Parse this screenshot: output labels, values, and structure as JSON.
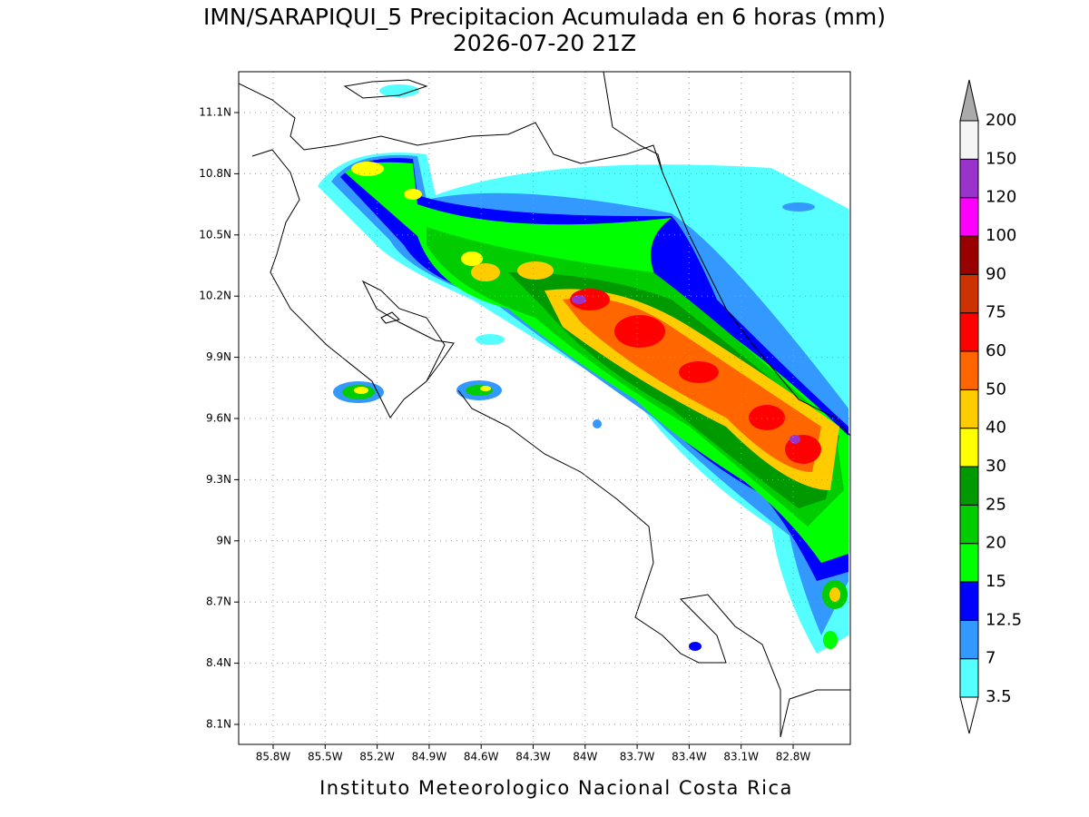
{
  "header": {
    "title": "IMN/SARAPIQUI_5 Precipitacion Acumulada en 6 horas (mm)",
    "subtitle": "2026-07-20 21Z"
  },
  "map": {
    "lon_labels": [
      "85.8W",
      "85.5W",
      "85.2W",
      "84.9W",
      "84.6W",
      "84.3W",
      "84W",
      "83.7W",
      "83.4W",
      "83.1W",
      "82.8W"
    ],
    "lat_labels": [
      "11.1N",
      "10.8N",
      "10.5N",
      "10.2N",
      "9.9N",
      "9.6N",
      "9.3N",
      "9N",
      "8.7N",
      "8.4N",
      "8.1N"
    ]
  },
  "colorbar": {
    "levels": [
      3.5,
      7,
      12.5,
      15,
      20,
      25,
      30,
      40,
      50,
      60,
      75,
      90,
      100,
      120,
      150,
      200
    ],
    "colors": [
      "#55ffff",
      "#3399ff",
      "#0000ff",
      "#00ff00",
      "#00cc00",
      "#009900",
      "#ffff00",
      "#ffcc00",
      "#ff6600",
      "#ff0000",
      "#cc3300",
      "#990000",
      "#ff00ff",
      "#9933cc",
      "#f5f5f5"
    ],
    "over_color": "#aaaaaa",
    "under_color": "#ffffff"
  },
  "footer": {
    "credit": "Instituto Meteorologico Nacional Costa Rica"
  }
}
